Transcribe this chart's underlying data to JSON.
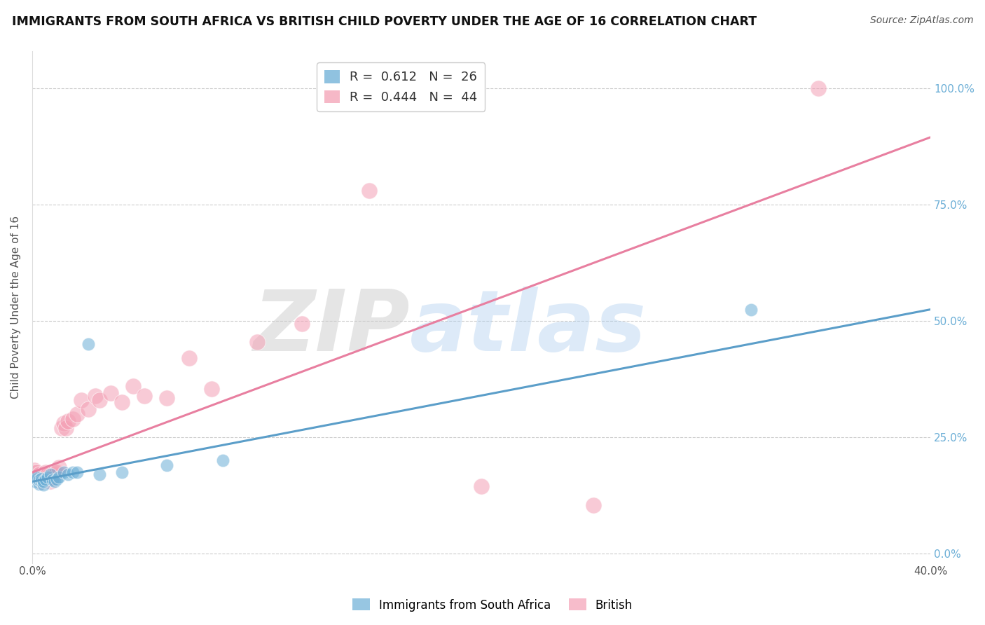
{
  "title": "IMMIGRANTS FROM SOUTH AFRICA VS BRITISH CHILD POVERTY UNDER THE AGE OF 16 CORRELATION CHART",
  "source": "Source: ZipAtlas.com",
  "ylabel": "Child Poverty Under the Age of 16",
  "watermark_zip": "ZIP",
  "watermark_atlas": "atlas",
  "blue_R": 0.612,
  "blue_N": 26,
  "pink_R": 0.444,
  "pink_N": 44,
  "xlim": [
    0.0,
    0.4
  ],
  "ylim": [
    -0.02,
    1.08
  ],
  "xtick_pos": [
    0.0,
    0.4
  ],
  "xtick_labels": [
    "0.0%",
    "40.0%"
  ],
  "yticks_right": [
    0.0,
    0.25,
    0.5,
    0.75,
    1.0
  ],
  "ytick_labels_right": [
    "0.0%",
    "25.0%",
    "50.0%",
    "75.0%",
    "100.0%"
  ],
  "blue_color": "#6baed6",
  "pink_color": "#f4a0b5",
  "blue_line_color": "#5b9ec9",
  "pink_line_color": "#e87fa0",
  "background_color": "#ffffff",
  "grid_color": "#cccccc",
  "blue_line_y0": 0.155,
  "blue_line_y1": 0.525,
  "pink_line_y0": 0.175,
  "pink_line_y1": 0.895,
  "blue_scatter_x": [
    0.001,
    0.002,
    0.002,
    0.003,
    0.003,
    0.004,
    0.004,
    0.005,
    0.005,
    0.006,
    0.007,
    0.008,
    0.009,
    0.01,
    0.011,
    0.012,
    0.014,
    0.016,
    0.018,
    0.02,
    0.025,
    0.03,
    0.04,
    0.06,
    0.085,
    0.32
  ],
  "blue_scatter_y": [
    0.155,
    0.16,
    0.165,
    0.15,
    0.158,
    0.155,
    0.162,
    0.148,
    0.155,
    0.16,
    0.165,
    0.17,
    0.158,
    0.155,
    0.16,
    0.165,
    0.175,
    0.17,
    0.175,
    0.175,
    0.45,
    0.17,
    0.175,
    0.19,
    0.2,
    0.525
  ],
  "pink_scatter_x": [
    0.001,
    0.001,
    0.002,
    0.002,
    0.003,
    0.003,
    0.004,
    0.004,
    0.005,
    0.005,
    0.006,
    0.006,
    0.007,
    0.007,
    0.008,
    0.008,
    0.009,
    0.01,
    0.01,
    0.011,
    0.012,
    0.013,
    0.014,
    0.015,
    0.016,
    0.018,
    0.02,
    0.022,
    0.025,
    0.028,
    0.03,
    0.035,
    0.04,
    0.045,
    0.05,
    0.06,
    0.07,
    0.08,
    0.1,
    0.12,
    0.15,
    0.2,
    0.25,
    0.35
  ],
  "pink_scatter_y": [
    0.175,
    0.18,
    0.165,
    0.175,
    0.16,
    0.17,
    0.155,
    0.165,
    0.158,
    0.165,
    0.17,
    0.175,
    0.165,
    0.17,
    0.155,
    0.16,
    0.165,
    0.17,
    0.175,
    0.175,
    0.185,
    0.27,
    0.28,
    0.27,
    0.285,
    0.29,
    0.3,
    0.33,
    0.31,
    0.34,
    0.33,
    0.345,
    0.325,
    0.36,
    0.34,
    0.335,
    0.42,
    0.355,
    0.455,
    0.495,
    0.78,
    0.145,
    0.105,
    1.0
  ]
}
